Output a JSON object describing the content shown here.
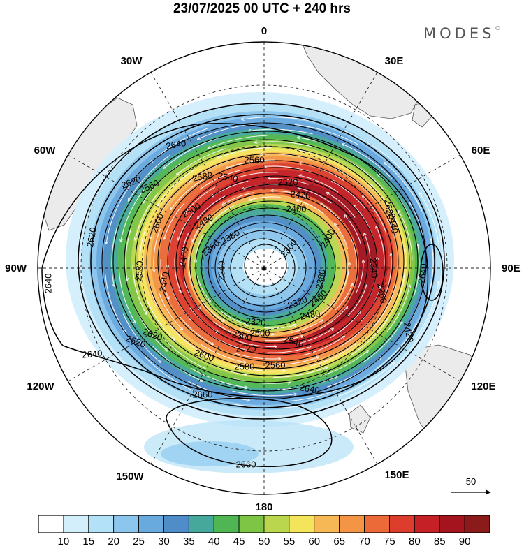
{
  "title": "23/07/2025  00 UTC  + 240 hrs",
  "brand": "MODES",
  "brand_mark": "©",
  "longitude_labels": [
    {
      "id": "lon-0",
      "text": "0"
    },
    {
      "id": "lon-30e",
      "text": "30E"
    },
    {
      "id": "lon-60e",
      "text": "60E"
    },
    {
      "id": "lon-90e",
      "text": "90E"
    },
    {
      "id": "lon-120e",
      "text": "120E"
    },
    {
      "id": "lon-150e",
      "text": "150E"
    },
    {
      "id": "lon-180",
      "text": "180"
    },
    {
      "id": "lon-150w",
      "text": "150W"
    },
    {
      "id": "lon-120w",
      "text": "120W"
    },
    {
      "id": "lon-90w",
      "text": "90W"
    },
    {
      "id": "lon-60w",
      "text": "60W"
    },
    {
      "id": "lon-30w",
      "text": "30W"
    }
  ],
  "contour_labels": [
    "2640",
    "2620",
    "2620",
    "2640",
    "2640",
    "2620",
    "2600",
    "2580",
    "2560",
    "2620",
    "2580",
    "2560",
    "2540",
    "2520",
    "2500",
    "2480",
    "2460",
    "2440",
    "2420",
    "2400",
    "2380",
    "2360",
    "2340",
    "2320",
    "2300",
    "2640",
    "2660",
    "2660",
    "2640",
    "2620",
    "2600",
    "2580",
    "2560",
    "2540",
    "2520",
    "2500",
    "2480",
    "2460",
    "2440",
    "2420",
    "2400",
    "2380",
    "2360",
    "2340",
    "2320",
    "2300"
  ],
  "wind_scale": {
    "value": "50"
  },
  "colorbar": {
    "colors": [
      "#ffffff",
      "#d4effc",
      "#b3e1f7",
      "#8cc6ec",
      "#68a9de",
      "#4e8dc7",
      "#46a89a",
      "#4fb653",
      "#7ec545",
      "#bad64e",
      "#f4e45c",
      "#f6b855",
      "#f39545",
      "#eb6a38",
      "#dc3d2c",
      "#c42026",
      "#a3141e",
      "#8b1a1a"
    ],
    "ticks": [
      "10",
      "15",
      "20",
      "25",
      "30",
      "35",
      "40",
      "45",
      "50",
      "55",
      "60",
      "65",
      "70",
      "75",
      "80",
      "85",
      "90"
    ]
  }
}
